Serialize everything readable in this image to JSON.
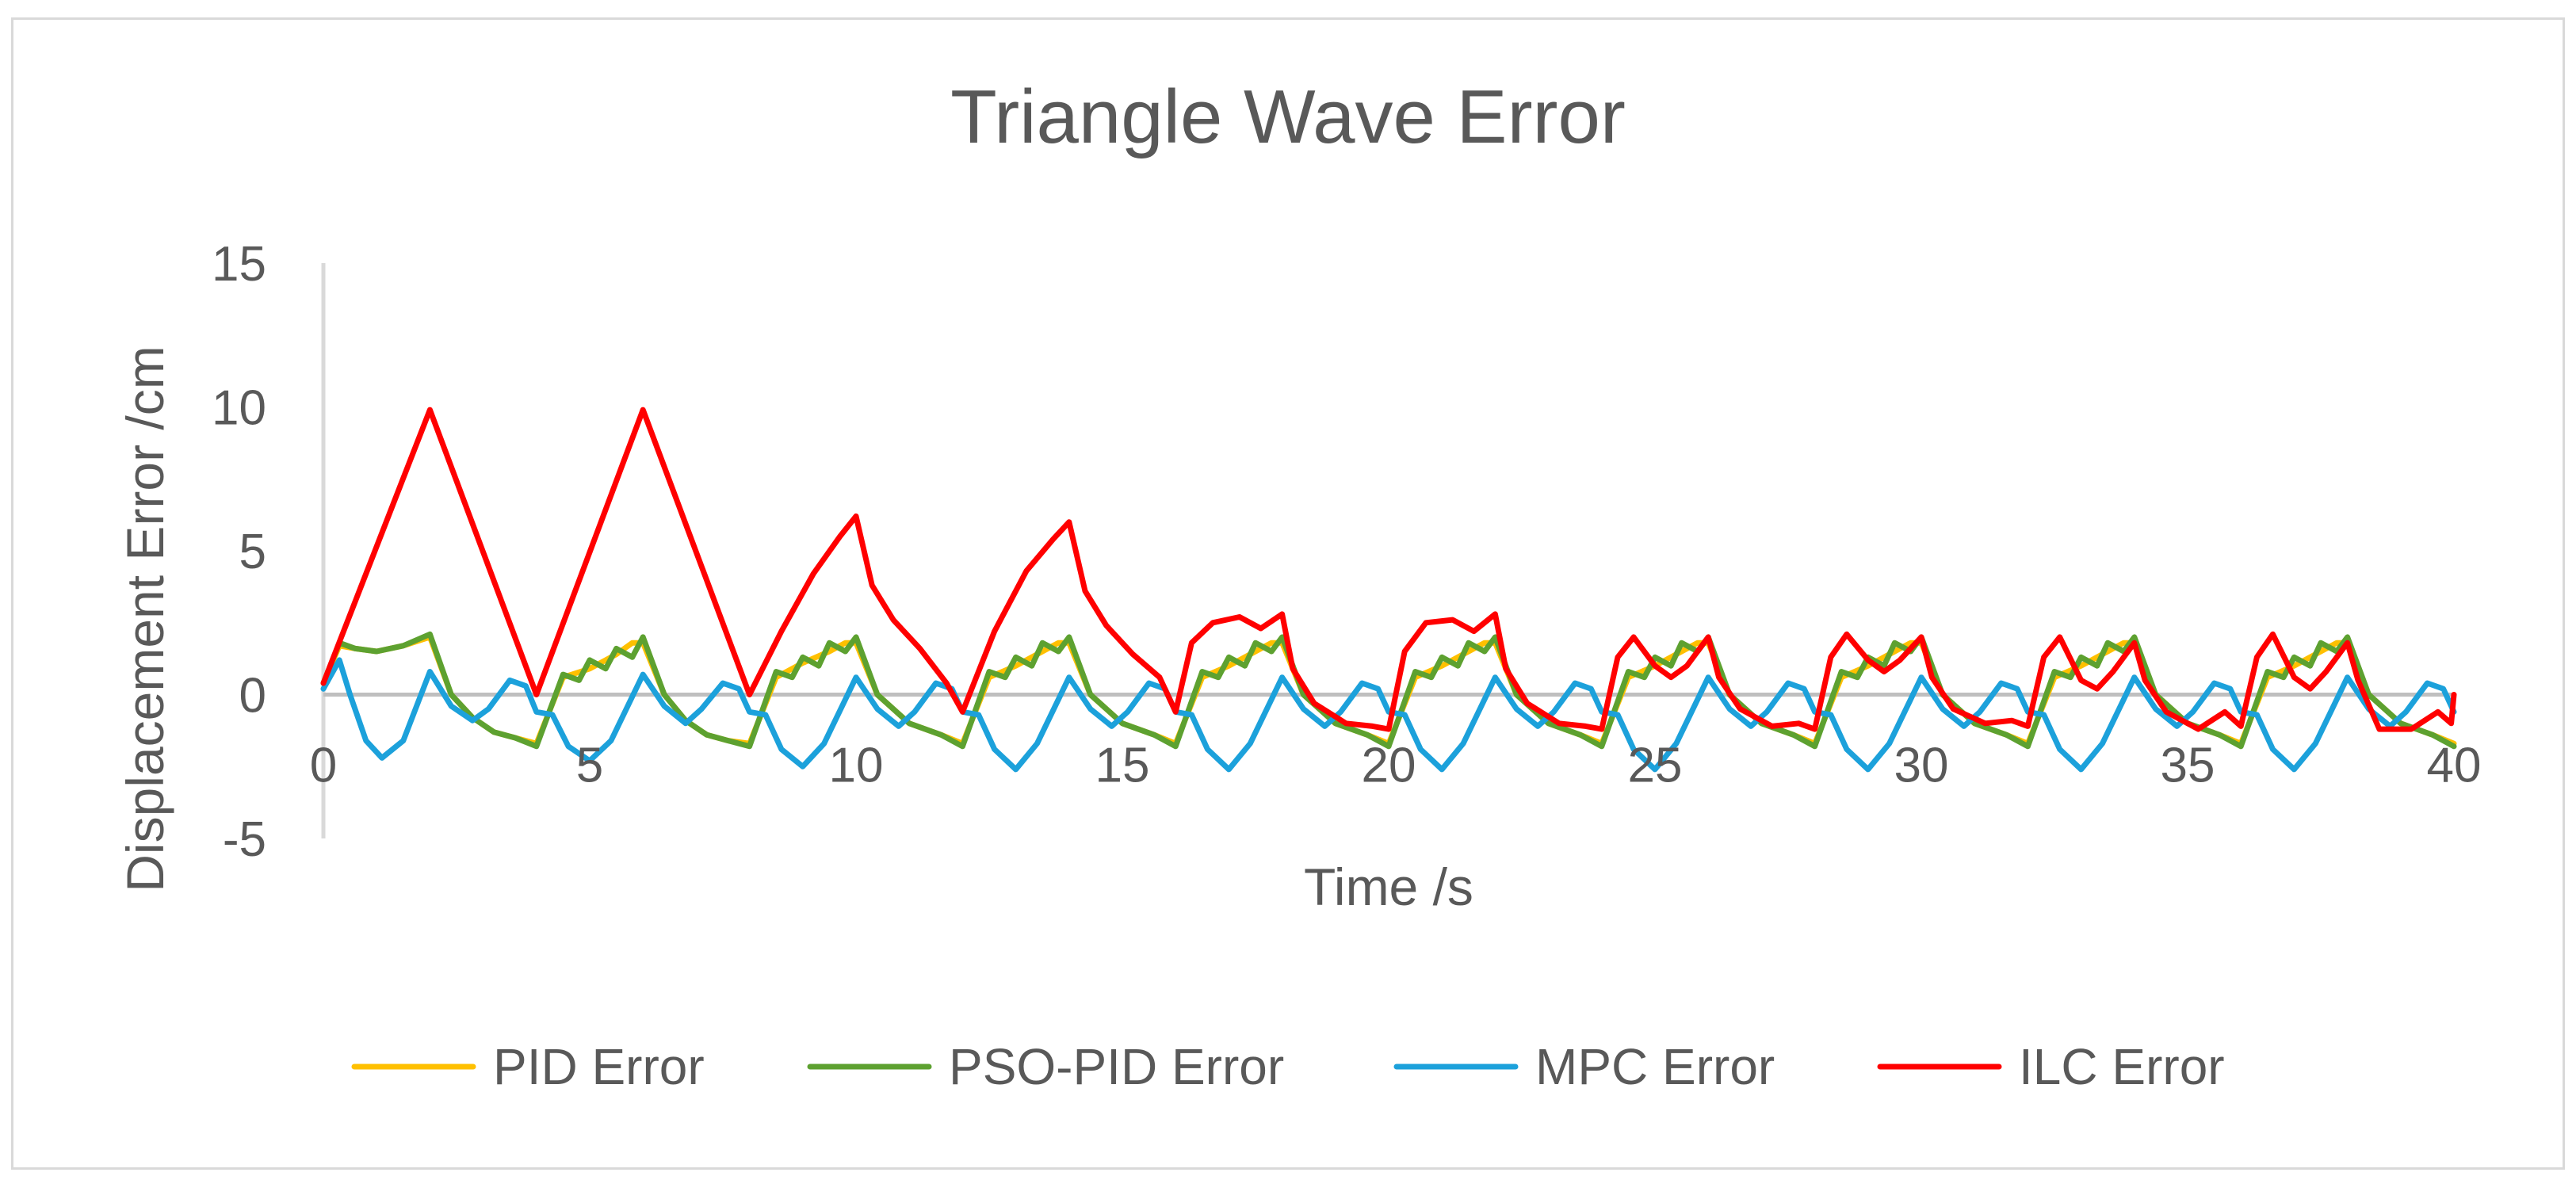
{
  "chart_data": {
    "type": "line",
    "title": "Triangle Wave Error",
    "xlabel": "Time /s",
    "ylabel": "Displacement Error /cm",
    "xlim": [
      0,
      40
    ],
    "ylim": [
      -5,
      15
    ],
    "xticks": [
      0,
      5,
      10,
      15,
      20,
      25,
      30,
      35,
      40
    ],
    "yticks": [
      -5,
      0,
      5,
      10,
      15
    ],
    "legend_position": "bottom",
    "series": [
      {
        "name": "PID Error",
        "color": "#FFC000",
        "x": [
          0,
          0.3,
          0.6,
          1.0,
          1.5,
          2.0,
          2.4,
          2.8,
          3.2,
          3.6,
          4.0,
          4.5,
          5.0,
          5.5,
          5.8,
          6.0,
          6.4,
          6.8,
          7.2,
          7.6,
          8.0,
          8.5,
          9.0,
          9.5,
          9.8,
          10.0,
          10.4,
          11.0,
          11.6,
          12.0,
          12.5,
          13.0,
          13.5,
          13.8,
          14.0,
          14.4,
          15.0,
          15.6,
          16.0,
          16.5,
          17.0,
          17.5,
          17.8,
          18.0,
          18.4,
          19.0,
          19.6,
          20.0,
          20.5,
          21.0,
          21.5,
          21.8,
          22.0,
          22.4,
          23.0,
          23.6,
          24.0,
          24.5,
          25.0,
          25.5,
          25.8,
          26.0,
          26.4,
          27.0,
          27.6,
          28.0,
          28.5,
          29.0,
          29.5,
          29.8,
          30.0,
          30.4,
          31.0,
          31.6,
          32.0,
          32.5,
          33.0,
          33.5,
          33.8,
          34.0,
          34.4,
          35.0,
          35.6,
          36.0,
          36.5,
          37.0,
          37.5,
          37.8,
          38.0,
          38.4,
          39.0,
          39.6,
          40.0
        ],
        "values": [
          0.4,
          1.7,
          1.6,
          1.5,
          1.7,
          2.0,
          0.0,
          -0.8,
          -1.3,
          -1.5,
          -1.7,
          0.6,
          0.9,
          1.4,
          1.8,
          1.8,
          0.0,
          -0.9,
          -1.4,
          -1.6,
          -1.7,
          0.6,
          1.1,
          1.5,
          1.8,
          1.8,
          0.0,
          -1.0,
          -1.4,
          -1.7,
          0.6,
          1.0,
          1.5,
          1.8,
          1.8,
          0.0,
          -1.0,
          -1.4,
          -1.7,
          0.6,
          1.0,
          1.5,
          1.8,
          1.8,
          0.0,
          -1.0,
          -1.4,
          -1.7,
          0.6,
          1.0,
          1.5,
          1.8,
          1.8,
          0.0,
          -1.0,
          -1.4,
          -1.7,
          0.6,
          1.0,
          1.5,
          1.8,
          1.8,
          0.0,
          -1.0,
          -1.4,
          -1.7,
          0.6,
          1.0,
          1.5,
          1.8,
          1.8,
          0.0,
          -1.0,
          -1.4,
          -1.7,
          0.6,
          1.0,
          1.5,
          1.8,
          1.8,
          0.0,
          -1.0,
          -1.4,
          -1.7,
          0.6,
          1.0,
          1.5,
          1.8,
          1.8,
          0.0,
          -1.0,
          -1.4,
          -1.7
        ]
      },
      {
        "name": "PSO-PID Error",
        "color": "#5DA130",
        "x": [
          0,
          0.3,
          0.6,
          1.0,
          1.5,
          2.0,
          2.4,
          2.8,
          3.2,
          3.6,
          4.0,
          4.5,
          4.8,
          5.0,
          5.3,
          5.5,
          5.8,
          6.0,
          6.4,
          6.8,
          7.2,
          7.6,
          8.0,
          8.5,
          8.8,
          9.0,
          9.3,
          9.5,
          9.8,
          10.0,
          10.4,
          11.0,
          11.6,
          12.0,
          12.5,
          12.8,
          13.0,
          13.3,
          13.5,
          13.8,
          14.0,
          14.4,
          15.0,
          15.6,
          16.0,
          16.5,
          16.8,
          17.0,
          17.3,
          17.5,
          17.8,
          18.0,
          18.4,
          19.0,
          19.6,
          20.0,
          20.5,
          20.8,
          21.0,
          21.3,
          21.5,
          21.8,
          22.0,
          22.4,
          23.0,
          23.6,
          24.0,
          24.5,
          24.8,
          25.0,
          25.3,
          25.5,
          25.8,
          26.0,
          26.4,
          27.0,
          27.6,
          28.0,
          28.5,
          28.8,
          29.0,
          29.3,
          29.5,
          29.8,
          30.0,
          30.4,
          31.0,
          31.6,
          32.0,
          32.5,
          32.8,
          33.0,
          33.3,
          33.5,
          33.8,
          34.0,
          34.4,
          35.0,
          35.6,
          36.0,
          36.5,
          36.8,
          37.0,
          37.3,
          37.5,
          37.8,
          38.0,
          38.4,
          39.0,
          39.6,
          40.0
        ],
        "values": [
          0.4,
          1.8,
          1.6,
          1.5,
          1.7,
          2.1,
          0.0,
          -0.8,
          -1.3,
          -1.5,
          -1.8,
          0.7,
          0.5,
          1.2,
          0.9,
          1.6,
          1.3,
          2.0,
          0.0,
          -0.9,
          -1.4,
          -1.6,
          -1.8,
          0.8,
          0.6,
          1.3,
          1.0,
          1.8,
          1.5,
          2.0,
          0.0,
          -1.0,
          -1.4,
          -1.8,
          0.8,
          0.6,
          1.3,
          1.0,
          1.8,
          1.5,
          2.0,
          0.0,
          -1.0,
          -1.4,
          -1.8,
          0.8,
          0.6,
          1.3,
          1.0,
          1.8,
          1.5,
          2.0,
          0.0,
          -1.0,
          -1.4,
          -1.8,
          0.8,
          0.6,
          1.3,
          1.0,
          1.8,
          1.5,
          2.0,
          0.0,
          -1.0,
          -1.4,
          -1.8,
          0.8,
          0.6,
          1.3,
          1.0,
          1.8,
          1.5,
          2.0,
          0.0,
          -1.0,
          -1.4,
          -1.8,
          0.8,
          0.6,
          1.3,
          1.0,
          1.8,
          1.5,
          2.0,
          0.0,
          -1.0,
          -1.4,
          -1.8,
          0.8,
          0.6,
          1.3,
          1.0,
          1.8,
          1.5,
          2.0,
          0.0,
          -1.0,
          -1.4,
          -1.8,
          0.8,
          0.6,
          1.3,
          1.0,
          1.8,
          1.5,
          2.0,
          0.0,
          -1.0,
          -1.4,
          -1.8
        ]
      },
      {
        "name": "MPC Error",
        "color": "#1CA1DB",
        "x": [
          0,
          0.3,
          0.5,
          0.8,
          1.1,
          1.5,
          2.0,
          2.4,
          2.8,
          3.1,
          3.5,
          3.8,
          4.0,
          4.3,
          4.6,
          5.0,
          5.4,
          6.0,
          6.4,
          6.8,
          7.1,
          7.5,
          7.8,
          8.0,
          8.3,
          8.6,
          9.0,
          9.4,
          10.0,
          10.4,
          10.8,
          11.1,
          11.5,
          11.8,
          12.0,
          12.3,
          12.6,
          13.0,
          13.4,
          14.0,
          14.4,
          14.8,
          15.1,
          15.5,
          15.8,
          16.0,
          16.3,
          16.6,
          17.0,
          17.4,
          18.0,
          18.4,
          18.8,
          19.1,
          19.5,
          19.8,
          20.0,
          20.3,
          20.6,
          21.0,
          21.4,
          22.0,
          22.4,
          22.8,
          23.1,
          23.5,
          23.8,
          24.0,
          24.3,
          24.6,
          25.0,
          25.4,
          26.0,
          26.4,
          26.8,
          27.1,
          27.5,
          27.8,
          28.0,
          28.3,
          28.6,
          29.0,
          29.4,
          30.0,
          30.4,
          30.8,
          31.1,
          31.5,
          31.8,
          32.0,
          32.3,
          32.6,
          33.0,
          33.4,
          34.0,
          34.4,
          34.8,
          35.1,
          35.5,
          35.8,
          36.0,
          36.3,
          36.6,
          37.0,
          37.4,
          38.0,
          38.4,
          38.8,
          39.1,
          39.5,
          39.8,
          40.0
        ],
        "values": [
          0.2,
          1.2,
          0.0,
          -1.6,
          -2.2,
          -1.6,
          0.8,
          -0.4,
          -0.9,
          -0.5,
          0.5,
          0.3,
          -0.6,
          -0.7,
          -1.8,
          -2.3,
          -1.6,
          0.7,
          -0.4,
          -1.0,
          -0.5,
          0.4,
          0.2,
          -0.6,
          -0.7,
          -1.9,
          -2.5,
          -1.7,
          0.6,
          -0.5,
          -1.1,
          -0.6,
          0.4,
          0.2,
          -0.6,
          -0.7,
          -1.9,
          -2.6,
          -1.7,
          0.6,
          -0.5,
          -1.1,
          -0.6,
          0.4,
          0.2,
          -0.6,
          -0.7,
          -1.9,
          -2.6,
          -1.7,
          0.6,
          -0.5,
          -1.1,
          -0.6,
          0.4,
          0.2,
          -0.6,
          -0.7,
          -1.9,
          -2.6,
          -1.7,
          0.6,
          -0.5,
          -1.1,
          -0.6,
          0.4,
          0.2,
          -0.6,
          -0.7,
          -1.9,
          -2.6,
          -1.7,
          0.6,
          -0.5,
          -1.1,
          -0.6,
          0.4,
          0.2,
          -0.6,
          -0.7,
          -1.9,
          -2.6,
          -1.7,
          0.6,
          -0.5,
          -1.1,
          -0.6,
          0.4,
          0.2,
          -0.6,
          -0.7,
          -1.9,
          -2.6,
          -1.7,
          0.6,
          -0.5,
          -1.1,
          -0.6,
          0.4,
          0.2,
          -0.6,
          -0.7,
          -1.9,
          -2.6,
          -1.7,
          0.6,
          -0.5,
          -1.1,
          -0.6,
          0.4,
          0.2,
          -0.6
        ]
      },
      {
        "name": "ILC Error",
        "color": "#FF0000",
        "x": [
          0,
          2.0,
          4.0,
          6.0,
          8.0,
          8.6,
          9.2,
          9.7,
          10.0,
          10.3,
          10.7,
          11.2,
          11.7,
          12.0,
          12.6,
          13.2,
          13.7,
          14.0,
          14.3,
          14.7,
          15.2,
          15.7,
          16.0,
          16.3,
          16.7,
          17.2,
          17.6,
          18.0,
          18.2,
          18.6,
          19.2,
          19.7,
          20.0,
          20.3,
          20.7,
          21.2,
          21.6,
          22.0,
          22.2,
          22.6,
          23.2,
          23.7,
          24.0,
          24.3,
          24.6,
          25.0,
          25.3,
          25.6,
          26.0,
          26.2,
          26.6,
          27.2,
          27.7,
          28.0,
          28.3,
          28.6,
          29.0,
          29.3,
          29.6,
          30.0,
          30.2,
          30.6,
          31.2,
          31.7,
          32.0,
          32.3,
          32.6,
          33.0,
          33.3,
          33.6,
          34.0,
          34.2,
          34.6,
          35.2,
          35.7,
          36.0,
          36.3,
          36.6,
          37.0,
          37.3,
          37.6,
          38.0,
          38.2,
          38.6,
          39.2,
          39.7,
          39.95,
          40.0
        ],
        "values": [
          0.4,
          9.9,
          0.0,
          9.9,
          0.0,
          2.2,
          4.2,
          5.5,
          6.2,
          3.8,
          2.6,
          1.6,
          0.4,
          -0.6,
          2.2,
          4.3,
          5.4,
          6.0,
          3.6,
          2.4,
          1.4,
          0.6,
          -0.6,
          1.8,
          2.5,
          2.7,
          2.3,
          2.8,
          0.9,
          -0.3,
          -1.0,
          -1.1,
          -1.2,
          1.5,
          2.5,
          2.6,
          2.2,
          2.8,
          0.9,
          -0.3,
          -1.0,
          -1.1,
          -1.2,
          1.3,
          2.0,
          1.0,
          0.6,
          1.0,
          2.0,
          0.6,
          -0.5,
          -1.1,
          -1.0,
          -1.2,
          1.3,
          2.1,
          1.2,
          0.8,
          1.2,
          2.0,
          0.6,
          -0.5,
          -1.0,
          -0.9,
          -1.1,
          1.3,
          2.0,
          0.5,
          0.2,
          0.8,
          1.8,
          0.5,
          -0.6,
          -1.2,
          -0.6,
          -1.1,
          1.3,
          2.1,
          0.6,
          0.2,
          0.8,
          1.8,
          0.5,
          -1.2,
          -1.2,
          -0.6,
          -1.0,
          0.0
        ]
      }
    ]
  }
}
